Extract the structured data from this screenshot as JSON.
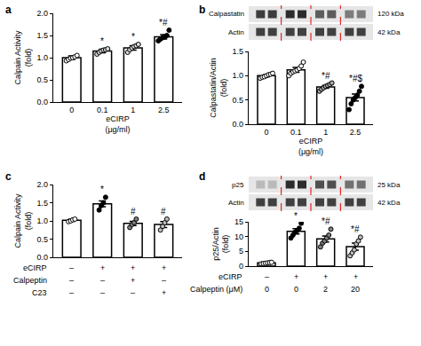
{
  "chart_data": [
    {
      "type": "bar",
      "panel": "a",
      "categories": [
        "0",
        "0.1",
        "1",
        "2.5"
      ],
      "values": [
        1.0,
        1.15,
        1.22,
        1.47
      ],
      "errors": [
        0.04,
        0.04,
        0.05,
        0.05
      ],
      "points": [
        [
          0.93,
          0.96,
          0.99,
          1.0,
          1.02,
          1.05
        ],
        [
          1.08,
          1.12,
          1.15,
          1.17,
          1.18,
          1.2
        ],
        [
          1.12,
          1.18,
          1.22,
          1.25,
          1.27,
          1.3
        ],
        [
          1.38,
          1.42,
          1.45,
          1.47,
          1.5,
          1.62
        ]
      ],
      "marks": [
        null,
        "*",
        "*",
        "*#"
      ],
      "color": "#ffffff",
      "colors": [
        "#ffffff",
        "#d9d9d9",
        "#d9d9d9",
        "#000000"
      ],
      "x_label": [
        "eCIRP",
        "(μg/ml)"
      ],
      "y_label": [
        "Calpain Activity",
        "(fold)"
      ],
      "ylim": [
        0,
        2.0
      ],
      "yticks": [
        {
          "value": 0,
          "label": "0.0"
        },
        0.5,
        {
          "value": 1,
          "label": "1.0"
        },
        1.5,
        {
          "value": 2,
          "label": "2.0"
        }
      ],
      "grid": false
    },
    {
      "type": "bar",
      "panel": "b",
      "categories": [
        "0",
        "0.1",
        "1",
        "2.5"
      ],
      "values": [
        1.0,
        1.12,
        0.77,
        0.55
      ],
      "errors": [
        0.02,
        0.05,
        0.03,
        0.07
      ],
      "points": [
        [
          0.95,
          0.97,
          0.98,
          1.0,
          1.02,
          1.03,
          1.05
        ],
        [
          1.0,
          1.05,
          1.08,
          1.1,
          1.12,
          1.15,
          1.2,
          1.28
        ],
        [
          0.68,
          0.72,
          0.75,
          0.78,
          0.8,
          0.82,
          0.85
        ],
        [
          0.3,
          0.42,
          0.5,
          0.55,
          0.6,
          0.68,
          0.78
        ]
      ],
      "marks": [
        null,
        null,
        "*#",
        "*#$"
      ],
      "color": "#ffffff",
      "colors": [
        "#ffffff",
        "#ffffff",
        "#a6a6a6",
        "#000000"
      ],
      "x_label": [
        "eCIRP",
        "(μg/ml)"
      ],
      "y_label": [
        "Calpastatin/Actin",
        "(fold)"
      ],
      "ylim": [
        0,
        1.5
      ],
      "yticks": [
        {
          "value": 0,
          "label": "0.0"
        },
        0.5,
        {
          "value": 1,
          "label": "1.0"
        },
        1.5
      ],
      "grid": false,
      "blot": [
        {
          "label": "Calpastatin",
          "size": "120 kDa"
        },
        {
          "label": "Actin",
          "size": "42 kDa"
        }
      ]
    },
    {
      "type": "bar",
      "panel": "c",
      "categories": [
        null,
        null,
        null,
        null
      ],
      "values": [
        1.02,
        1.47,
        0.93,
        0.9
      ],
      "errors": [
        0.03,
        0.08,
        0.06,
        0.08
      ],
      "points": [
        [
          0.98,
          1.0,
          1.03,
          1.05
        ],
        [
          1.3,
          1.42,
          1.5,
          1.65
        ],
        [
          0.82,
          0.9,
          0.95,
          1.05
        ],
        [
          0.75,
          0.85,
          0.95,
          1.05
        ]
      ],
      "marks": [
        null,
        "*",
        "#",
        "#"
      ],
      "color": "#ffffff",
      "colors": [
        "#ffffff",
        "#000000",
        "#7f7f7f",
        "#bfbfbf"
      ],
      "y_label": [
        "Calpain Activity",
        "(fold)"
      ],
      "ylim": [
        0,
        2.0
      ],
      "yticks": [
        {
          "value": 0,
          "label": "0.0"
        },
        0.5,
        {
          "value": 1,
          "label": "1.0"
        },
        1.5,
        {
          "value": 2,
          "label": "2.0"
        }
      ],
      "grid": false,
      "conditions": [
        {
          "label": "eCIRP",
          "values": [
            "–",
            "+",
            "+",
            "+"
          ]
        },
        {
          "label": "Calpeptin",
          "values": [
            "–",
            "–",
            "+",
            "–"
          ]
        },
        {
          "label": "C23",
          "values": [
            "–",
            "–",
            "–",
            "+"
          ]
        }
      ]
    },
    {
      "type": "bar",
      "panel": "d",
      "categories": [
        null,
        null,
        null,
        null
      ],
      "values": [
        1.1,
        11.8,
        9.2,
        6.6
      ],
      "errors": [
        0.15,
        0.9,
        1.0,
        1.2
      ],
      "points": [
        [
          0.8,
          0.9,
          1.0,
          1.1,
          1.2,
          1.3
        ],
        [
          9.5,
          10.5,
          11.5,
          12,
          12.8,
          14.5
        ],
        [
          6.5,
          7.8,
          8.5,
          9.5,
          10.5,
          12.5
        ],
        [
          3.5,
          4.5,
          5.5,
          7.5,
          8.5,
          9.8
        ]
      ],
      "marks": [
        null,
        "*",
        "*#",
        "*#"
      ],
      "color": "#ffffff",
      "colors": [
        "#ffffff",
        "#000000",
        "#7f7f7f",
        "#bfbfbf"
      ],
      "y_label": [
        "p25/Actin",
        "(fold)"
      ],
      "ylim": [
        0,
        15
      ],
      "yticks": [
        0,
        5,
        10,
        15
      ],
      "grid": false,
      "blot": [
        {
          "label": "p25",
          "size": "25 kDa"
        },
        {
          "label": "Actin",
          "size": "42 kDa"
        }
      ],
      "conditions": [
        {
          "label": "eCIRP",
          "values": [
            "–",
            "+",
            "+",
            "+"
          ]
        },
        {
          "label": "Calpeptin (μM)",
          "values": [
            0,
            0,
            2,
            20
          ]
        }
      ]
    }
  ]
}
